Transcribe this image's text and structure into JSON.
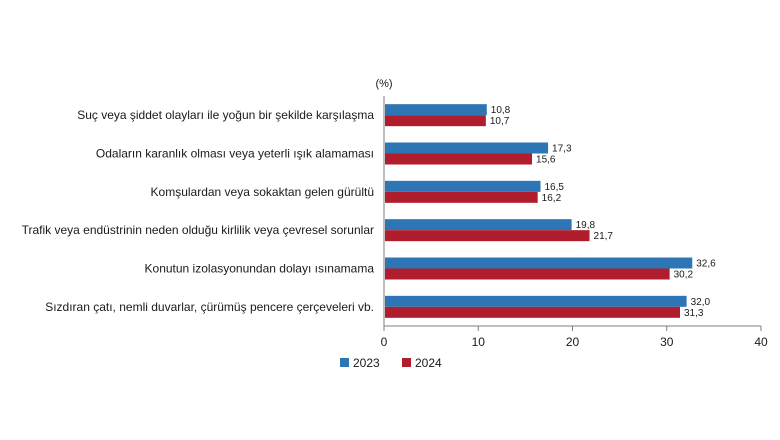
{
  "chart_data": {
    "type": "bar",
    "orientation": "horizontal",
    "unit_label": "(%)",
    "categories": [
      "Suç veya şiddet olayları ile yoğun bir şekilde karşılaşma",
      "Odaların karanlık olması veya yeterli ışık alamaması",
      "Komşulardan veya sokaktan gelen gürültü",
      "Trafik veya endüstrinin neden olduğu kirlilik veya çevresel sorunlar",
      "Konutun izolasyonundan dolayı ısınamama",
      "Sızdıran çatı, nemli duvarlar, çürümüş pencere çerçeveleri vb."
    ],
    "series": [
      {
        "name": "2023",
        "color": "#2e75b6",
        "values": [
          10.8,
          17.3,
          16.5,
          19.8,
          32.6,
          32.0
        ],
        "labels": [
          "10,8",
          "17,3",
          "16,5",
          "19,8",
          "32,6",
          "32,0"
        ]
      },
      {
        "name": "2024",
        "color": "#b01e2e",
        "values": [
          10.7,
          15.6,
          16.2,
          21.7,
          30.2,
          31.3
        ],
        "labels": [
          "10,7",
          "15,6",
          "16,2",
          "21,7",
          "30,2",
          "31,3"
        ]
      }
    ],
    "xlim": [
      0,
      40
    ],
    "xticks": [
      "0",
      "10",
      "20",
      "30",
      "40"
    ],
    "grid": false,
    "legend_position": "bottom-left"
  }
}
